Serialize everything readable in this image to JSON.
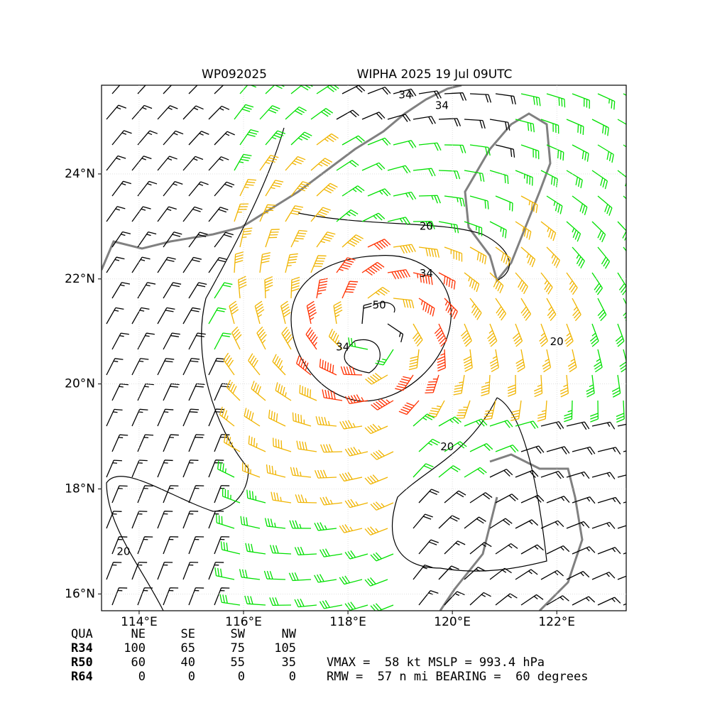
{
  "title_left": "WP092025",
  "title_right": "WIPHA 2025 19 Jul 09UTC",
  "map": {
    "lon_range": [
      113.28,
      123.33
    ],
    "lat_range": [
      15.68,
      25.69
    ],
    "xticks": [
      {
        "value": 114,
        "label": "114°E"
      },
      {
        "value": 116,
        "label": "116°E"
      },
      {
        "value": 118,
        "label": "118°E"
      },
      {
        "value": 120,
        "label": "120°E"
      },
      {
        "value": 122,
        "label": "122°E"
      }
    ],
    "yticks": [
      {
        "value": 16,
        "label": "16°N"
      },
      {
        "value": 18,
        "label": "18°N"
      },
      {
        "value": 20,
        "label": "20°N"
      },
      {
        "value": 22,
        "label": "22°N"
      },
      {
        "value": 24,
        "label": "24°N"
      }
    ],
    "contour_labels": [
      {
        "value": 34,
        "lon": 119.1,
        "lat": 25.5
      },
      {
        "value": 34,
        "lon": 119.8,
        "lat": 25.3
      },
      {
        "value": 20,
        "lon": 119.5,
        "lat": 23.0
      },
      {
        "value": 34,
        "lon": 119.5,
        "lat": 22.1
      },
      {
        "value": 50,
        "lon": 118.6,
        "lat": 21.5
      },
      {
        "value": 34,
        "lon": 117.9,
        "lat": 20.7
      },
      {
        "value": 20,
        "lon": 122.0,
        "lat": 20.8
      },
      {
        "value": 20,
        "lon": 119.9,
        "lat": 18.8
      },
      {
        "value": 20,
        "lon": 113.7,
        "lat": 16.8
      }
    ]
  },
  "table": {
    "header": [
      "QUA",
      "NE",
      "SE",
      "SW",
      "NW"
    ],
    "rows": [
      [
        "R34",
        "100",
        "65",
        "75",
        "105"
      ],
      [
        "R50",
        "60",
        "40",
        "55",
        "35"
      ],
      [
        "R64",
        "0",
        "0",
        "0",
        "0"
      ]
    ]
  },
  "summary": [
    "VMAX =  58 kt MSLP = 993.4 hPa",
    "RMW =  57 n mi BEARING =  60 degrees"
  ]
}
